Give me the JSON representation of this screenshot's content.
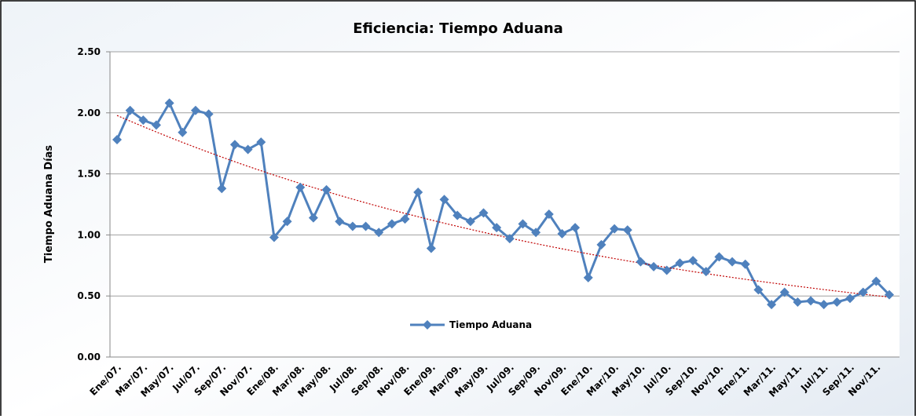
{
  "chart_data": {
    "type": "line",
    "title": "Eficiencia: Tiempo Aduana",
    "y_label": "Tiempo Aduana Días",
    "categories": [
      "Ene/07.",
      null,
      "Mar/07.",
      null,
      "May/07.",
      null,
      "Jul/07.",
      null,
      "Sep/07.",
      null,
      "Nov/07.",
      null,
      "Ene/08.",
      null,
      "Mar/08.",
      null,
      "May/08.",
      null,
      "Jul/08.",
      null,
      "Sep/08.",
      null,
      "Nov/08.",
      null,
      "Ene/09.",
      null,
      "Mar/09.",
      null,
      "May/09.",
      null,
      "Jul/09.",
      null,
      "Sep/09.",
      null,
      "Nov/09.",
      null,
      "Ene/10.",
      null,
      "Mar/10.",
      null,
      "May/10.",
      null,
      "Jul/10.",
      null,
      "Sep/10.",
      null,
      "Nov/10.",
      null,
      "Ene/11.",
      null,
      "Mar/11.",
      null,
      "May/11.",
      null,
      "Jul/11.",
      null,
      "Sep/11.",
      null,
      "Nov/11.",
      null
    ],
    "series": [
      {
        "name": "Tiempo Aduana",
        "color": "#4f81bd",
        "values": [
          1.78,
          2.02,
          1.94,
          1.9,
          2.08,
          1.84,
          2.02,
          1.99,
          1.38,
          1.74,
          1.7,
          1.76,
          0.98,
          1.11,
          1.39,
          1.14,
          1.37,
          1.11,
          1.07,
          1.07,
          1.02,
          1.09,
          1.13,
          1.35,
          0.89,
          1.29,
          1.16,
          1.11,
          1.18,
          1.06,
          0.97,
          1.09,
          1.02,
          1.17,
          1.01,
          1.06,
          0.65,
          0.92,
          1.05,
          1.04,
          0.78,
          0.74,
          0.71,
          0.77,
          0.79,
          0.7,
          0.82,
          0.78,
          0.76,
          0.55,
          0.43,
          0.53,
          0.45,
          0.46,
          0.43,
          0.45,
          0.48,
          0.53,
          0.62,
          0.51
        ]
      }
    ],
    "ylim": [
      0,
      2.5
    ],
    "yticks": [
      {
        "value": 0,
        "label": "0.00"
      },
      {
        "value": 0.5,
        "label": "0.50"
      },
      {
        "value": 1,
        "label": "1.00"
      },
      {
        "value": 1.5,
        "label": "1.50"
      },
      {
        "value": 2,
        "label": "2.00"
      },
      {
        "value": 2.5,
        "label": "2.50"
      }
    ],
    "grid": true,
    "trendline": {
      "kind": "exponential",
      "color": "#c00000"
    },
    "legend": "inside-bottom"
  }
}
